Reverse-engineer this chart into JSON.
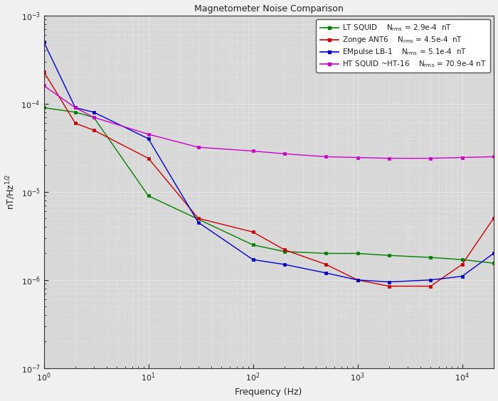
{
  "title": "Magnetometer Noise Comparison",
  "xlabel": "Frequency (Hz)",
  "ylabel": "nT/Hz$^{1/2}$",
  "xlim": [
    1,
    20000
  ],
  "ylim": [
    1e-07,
    0.001
  ],
  "plot_bg_color": "#e8e8e8",
  "fig_bg_color": "#f0f0f0",
  "grid_color": "#ffffff",
  "series": [
    {
      "label": "LT SQUID",
      "nrms": "2.9e-4  nT",
      "color": "#008000",
      "x": [
        1,
        2,
        3,
        10,
        100,
        200,
        500,
        1000,
        2000,
        5000,
        10000,
        20000
      ],
      "y": [
        9e-05,
        8e-05,
        7e-05,
        9e-06,
        2.5e-06,
        2.1e-06,
        2e-06,
        2e-06,
        1.9e-06,
        1.8e-06,
        1.7e-06,
        1.55e-06
      ]
    },
    {
      "label": "Zonge ANT6",
      "nrms": "4.5e-4  nT",
      "color": "#cc0000",
      "x": [
        1,
        2,
        3,
        10,
        30,
        100,
        200,
        500,
        1000,
        2000,
        5000,
        10000,
        20000
      ],
      "y": [
        0.00023,
        6e-05,
        5e-05,
        2.4e-05,
        5e-06,
        3.5e-06,
        2.2e-06,
        1.5e-06,
        1e-06,
        8.5e-07,
        8.5e-07,
        1.5e-06,
        5e-06
      ]
    },
    {
      "label": "EMpulse LB-1",
      "nrms": "5.1e-4  nT",
      "color": "#0000cc",
      "x": [
        1,
        2,
        3,
        10,
        30,
        100,
        200,
        500,
        1000,
        2000,
        5000,
        10000,
        20000
      ],
      "y": [
        0.0005,
        9e-05,
        8e-05,
        4e-05,
        4.5e-06,
        1.7e-06,
        1.5e-06,
        1.2e-06,
        1e-06,
        9.5e-07,
        1e-06,
        1.1e-06,
        2e-06
      ]
    },
    {
      "label": "HT SQUID ~HT-16",
      "nrms": "70.9e-4 nT",
      "color": "#cc00cc",
      "x": [
        1,
        2,
        3,
        10,
        30,
        100,
        200,
        500,
        1000,
        2000,
        5000,
        10000,
        20000
      ],
      "y": [
        0.00016,
        9e-05,
        7e-05,
        4.5e-05,
        3.2e-05,
        2.9e-05,
        2.7e-05,
        2.5e-05,
        2.45e-05,
        2.4e-05,
        2.4e-05,
        2.45e-05,
        2.5e-05
      ]
    }
  ]
}
